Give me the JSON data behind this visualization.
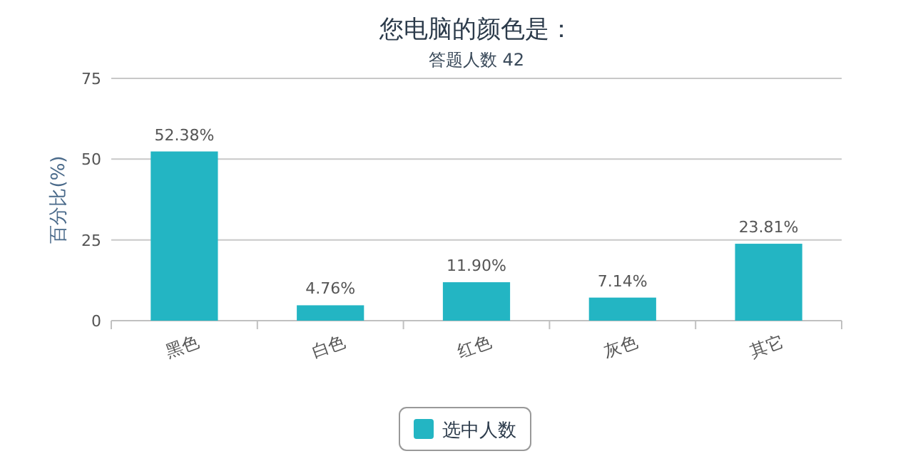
{
  "chart_data": {
    "type": "bar",
    "title": "您电脑的颜色是：",
    "subtitle": "答题人数 42",
    "ylabel": "百分比(%)",
    "categories": [
      "黑色",
      "白色",
      "红色",
      "灰色",
      "其它"
    ],
    "series": [
      {
        "name": "选中人数",
        "color": "#23b5c3",
        "values": [
          52.38,
          4.76,
          11.9,
          7.14,
          23.81
        ],
        "value_labels": [
          "52.38%",
          "4.76%",
          "11.90%",
          "7.14%",
          "23.81%"
        ]
      }
    ],
    "ylim": [
      0,
      75
    ],
    "yticks": [
      0,
      25,
      50,
      75
    ],
    "grid": "y",
    "legend": "bottom"
  }
}
